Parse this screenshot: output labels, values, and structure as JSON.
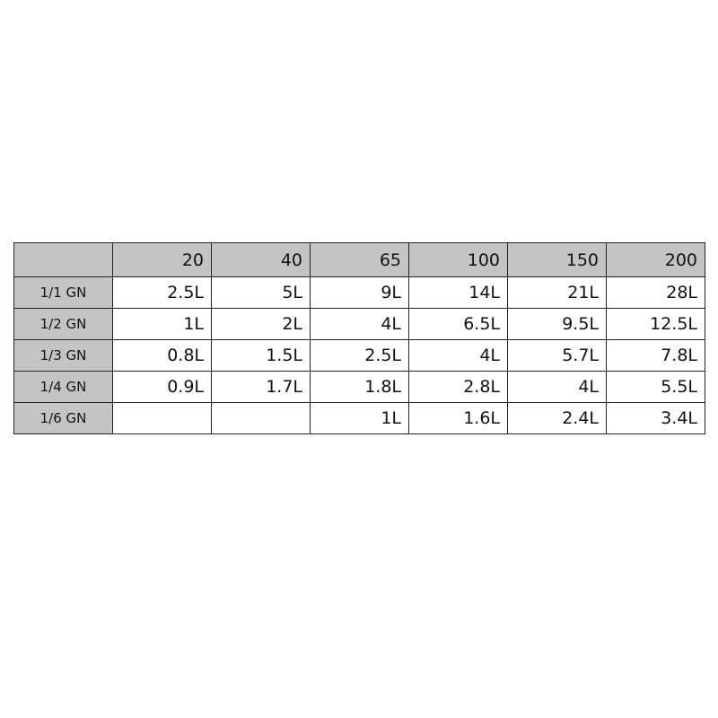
{
  "table": {
    "header_corner": "",
    "columns": [
      "20",
      "40",
      "65",
      "100",
      "150",
      "200"
    ],
    "rows": [
      {
        "label": "1/1 GN",
        "values": [
          "2.5L",
          "5L",
          "9L",
          "14L",
          "21L",
          "28L"
        ]
      },
      {
        "label": "1/2 GN",
        "values": [
          "1L",
          "2L",
          "4L",
          "6.5L",
          "9.5L",
          "12.5L"
        ]
      },
      {
        "label": "1/3 GN",
        "values": [
          "0.8L",
          "1.5L",
          "2.5L",
          "4L",
          "5.7L",
          "7.8L"
        ]
      },
      {
        "label": "1/4 GN",
        "values": [
          "0.9L",
          "1.7L",
          "1.8L",
          "2.8L",
          "4L",
          "5.5L"
        ]
      },
      {
        "label": "1/6 GN",
        "values": [
          "",
          "",
          "1L",
          "1.6L",
          "2.4L",
          "3.4L"
        ]
      }
    ],
    "header_color": "#c4c4c4"
  }
}
